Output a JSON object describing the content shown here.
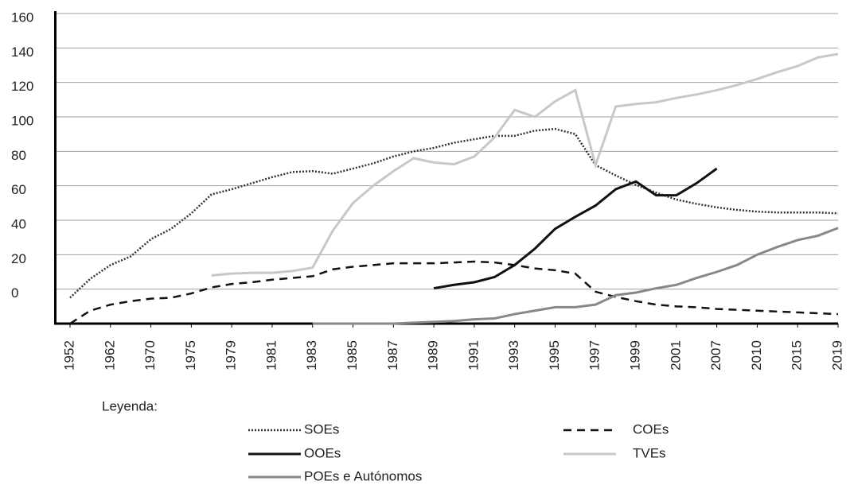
{
  "chart_data": {
    "type": "line",
    "categories": [
      "1952",
      null,
      "1962",
      null,
      "1970",
      null,
      "1975",
      null,
      "1979",
      null,
      "1981",
      null,
      "1983",
      null,
      "1985",
      null,
      "1987",
      null,
      "1989",
      null,
      "1991",
      null,
      "1993",
      null,
      "1995",
      null,
      "1997",
      null,
      "1999",
      null,
      "2001",
      null,
      "2007",
      null,
      "2010",
      null,
      "2015",
      null,
      "2019"
    ],
    "ylim": [
      -20,
      160
    ],
    "yticks": [
      0,
      20,
      40,
      60,
      80,
      100,
      120,
      140,
      160
    ],
    "grid": true,
    "legend_title": "Leyenda:",
    "series": [
      {
        "name": "SOEs",
        "color": "#333333",
        "dash": "dotted",
        "values": [
          -5,
          6,
          14,
          19,
          29,
          35,
          44,
          55,
          58,
          61.5,
          65,
          68,
          68.5,
          67,
          70,
          73,
          77,
          80,
          82,
          85,
          87,
          89,
          89,
          92,
          93,
          90,
          72,
          66,
          60.5,
          56,
          52,
          49.5,
          47.5,
          46,
          45,
          44.5,
          44.5,
          44.5,
          44
        ]
      },
      {
        "name": "COEs",
        "color": "#111111",
        "dash": "dashed",
        "values": [
          -20,
          -12.5,
          -9,
          -7,
          -5.5,
          -5,
          -2.5,
          1,
          3,
          4,
          5.5,
          6.5,
          7.5,
          11.5,
          13,
          14,
          15,
          15,
          15,
          15.5,
          16,
          15.5,
          14,
          12,
          11,
          9,
          -1.5,
          -4.5,
          -7,
          -9,
          -10,
          -10.5,
          -11.5,
          -12,
          -12.5,
          -13,
          -13.5,
          -14,
          -14.5
        ]
      },
      {
        "name": "OOEs",
        "color": "#111111",
        "dash": "solid",
        "values": [
          null,
          null,
          null,
          null,
          null,
          null,
          null,
          null,
          null,
          null,
          null,
          null,
          null,
          null,
          null,
          null,
          null,
          null,
          0.5,
          2.5,
          4,
          7,
          14,
          23.5,
          35,
          42,
          48.5,
          58,
          62.5,
          54.5,
          54.5,
          61.5,
          70,
          null,
          null,
          null,
          null,
          null,
          null
        ]
      },
      {
        "name": "TVEs",
        "color": "#c8c8c8",
        "dash": "solid",
        "values": [
          null,
          null,
          null,
          null,
          null,
          null,
          null,
          8,
          9,
          9.5,
          9.5,
          10.5,
          12.5,
          34,
          50,
          60,
          68.5,
          76,
          73.5,
          72.5,
          77,
          88,
          104,
          100,
          109,
          115.5,
          72,
          106,
          107.5,
          108.5,
          111,
          113,
          115.5,
          118.5,
          122,
          126,
          129.5,
          134.5,
          136.5
        ]
      },
      {
        "name": "POEs e Autónomos",
        "color": "#888888",
        "dash": "solid",
        "values": [
          null,
          null,
          null,
          null,
          null,
          null,
          null,
          null,
          null,
          null,
          null,
          null,
          -20,
          -20,
          -20,
          -20,
          -20,
          -19.5,
          -19,
          -18.5,
          -17.5,
          -17,
          -14.5,
          -12.5,
          -10.5,
          -10.5,
          -9,
          -3.5,
          -2,
          0.5,
          2.5,
          6.5,
          10,
          14,
          20,
          24.5,
          28.5,
          31,
          35.5
        ]
      }
    ]
  }
}
